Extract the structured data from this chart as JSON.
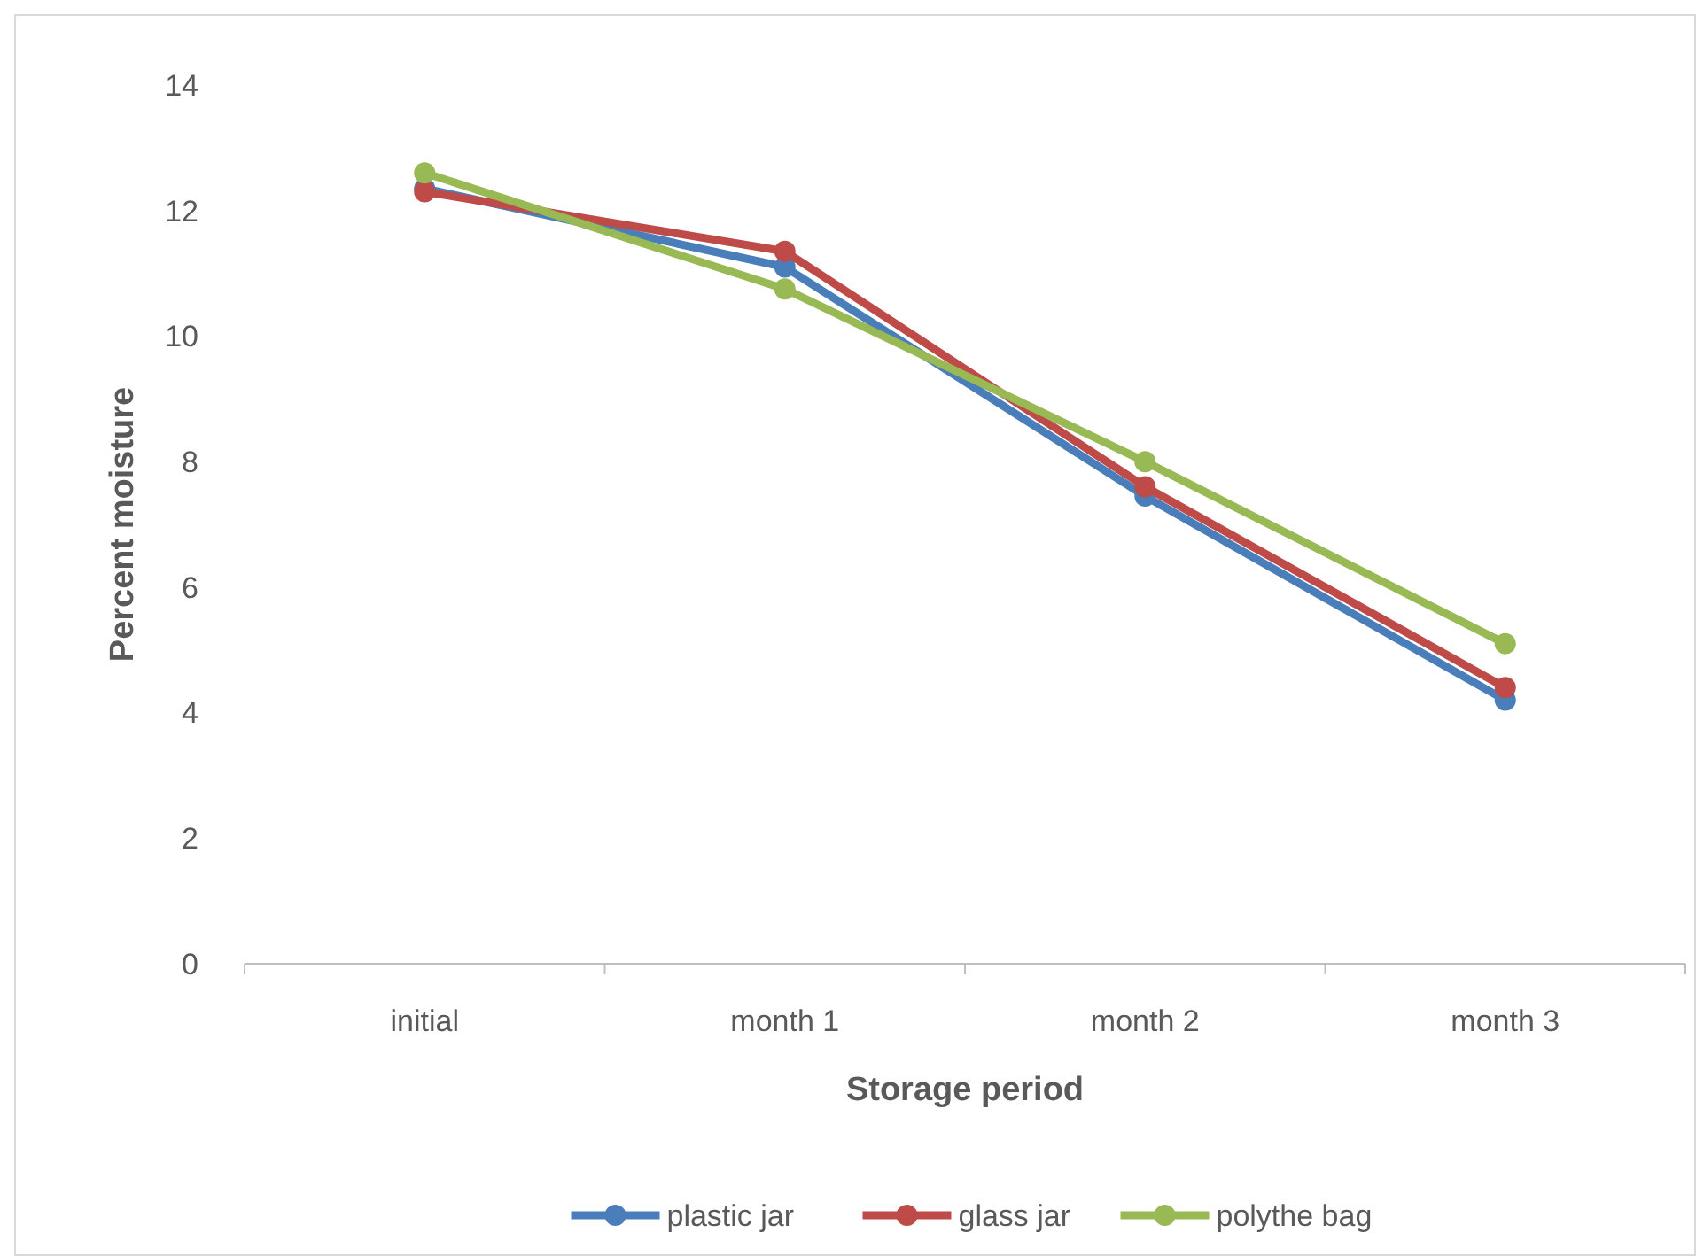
{
  "chart_data": {
    "type": "line",
    "xlabel": "Storage period",
    "ylabel": "Percent moisture",
    "categories": [
      "initial",
      "month 1",
      "month 2",
      "month 3"
    ],
    "series": [
      {
        "name": "plastic jar",
        "color": "#4a7ebb",
        "values": [
          12.35,
          11.1,
          7.45,
          4.2
        ]
      },
      {
        "name": "glass jar",
        "color": "#be4b48",
        "values": [
          12.3,
          11.35,
          7.6,
          4.4
        ]
      },
      {
        "name": "polythe bag",
        "color": "#98b954",
        "values": [
          12.6,
          10.75,
          8.0,
          5.1
        ]
      }
    ],
    "ylim": [
      0,
      14
    ],
    "yticks": [
      0,
      2,
      4,
      6,
      8,
      10,
      12,
      14
    ],
    "grid": false,
    "legend": "bottom",
    "marker": "circle",
    "line_style": "solid"
  }
}
